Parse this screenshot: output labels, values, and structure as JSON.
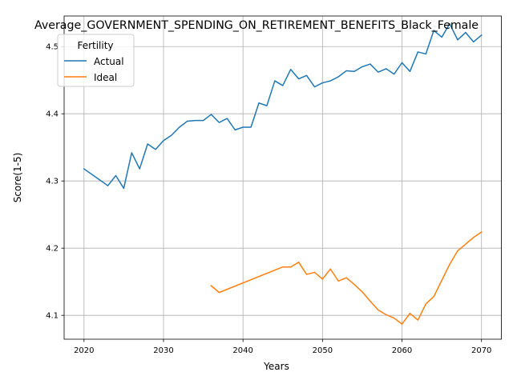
{
  "chart_data": {
    "type": "line",
    "title": "Average_GOVERNMENT_SPENDING_ON_RETIREMENT_BENEFITS_Black_Female",
    "xlabel": "Years",
    "ylabel": "Score(1-5)",
    "xlim": [
      2017.5,
      2072.5
    ],
    "ylim": [
      4.0645,
      4.5455
    ],
    "xticks": [
      2020,
      2030,
      2040,
      2050,
      2060,
      2070
    ],
    "xtick_labels": [
      "2020",
      "2030",
      "2040",
      "2050",
      "2060",
      "2070"
    ],
    "yticks": [
      4.1,
      4.2,
      4.3,
      4.4,
      4.5
    ],
    "ytick_labels": [
      "4.1",
      "4.2",
      "4.3",
      "4.4",
      "4.5"
    ],
    "grid": true,
    "legend": {
      "title": "Fertility",
      "placement": "upper-left"
    },
    "series": [
      {
        "name": "Actual",
        "color": "#1f77b4",
        "x": [
          2020,
          2023,
          2024,
          2025,
          2026,
          2027,
          2028,
          2029,
          2030,
          2031,
          2032,
          2033,
          2034,
          2035,
          2036,
          2037,
          2038,
          2039,
          2040,
          2041,
          2042,
          2043,
          2044,
          2045,
          2046,
          2047,
          2048,
          2049,
          2050,
          2051,
          2052,
          2053,
          2054,
          2055,
          2056,
          2057,
          2058,
          2059,
          2060,
          2061,
          2062,
          2063,
          2064,
          2065,
          2066,
          2067,
          2068,
          2069,
          2070
        ],
        "y": [
          4.318,
          4.293,
          4.308,
          4.289,
          4.342,
          4.318,
          4.355,
          4.347,
          4.36,
          4.368,
          4.38,
          4.389,
          4.39,
          4.39,
          4.399,
          4.387,
          4.393,
          4.376,
          4.38,
          4.38,
          4.416,
          4.412,
          4.449,
          4.442,
          4.466,
          4.452,
          4.457,
          4.44,
          4.446,
          4.449,
          4.455,
          4.464,
          4.463,
          4.47,
          4.474,
          4.462,
          4.467,
          4.459,
          4.476,
          4.463,
          4.492,
          4.489,
          4.524,
          4.514,
          4.534,
          4.51,
          4.521,
          4.507,
          4.517
        ]
      },
      {
        "name": "Ideal",
        "color": "#ff7f0e",
        "x": [
          2036,
          2037,
          2045,
          2046,
          2047,
          2048,
          2049,
          2050,
          2051,
          2052,
          2053,
          2054,
          2055,
          2056,
          2057,
          2058,
          2059,
          2060,
          2061,
          2062,
          2063,
          2064,
          2065,
          2066,
          2067,
          2068,
          2069,
          2070
        ],
        "y": [
          4.144,
          4.134,
          4.172,
          4.172,
          4.179,
          4.161,
          4.164,
          4.154,
          4.169,
          4.151,
          4.156,
          4.146,
          4.135,
          4.121,
          4.108,
          4.101,
          4.096,
          4.087,
          4.103,
          4.093,
          4.117,
          4.128,
          4.152,
          4.176,
          4.196,
          4.206,
          4.216,
          4.224
        ]
      }
    ]
  }
}
